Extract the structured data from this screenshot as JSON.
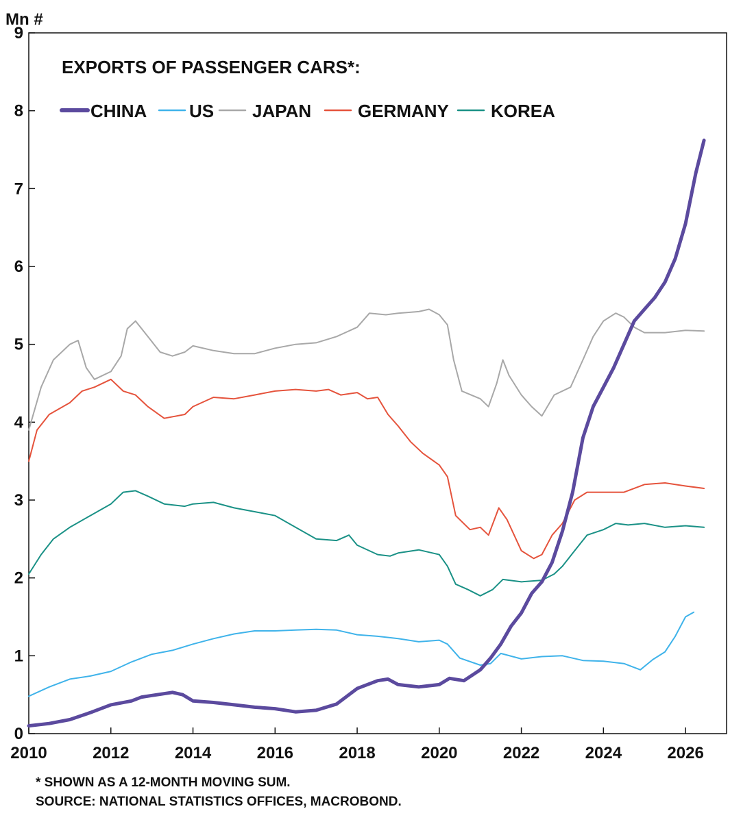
{
  "chart_data": {
    "type": "line",
    "title": "EXPORTS OF PASSENGER CARS*:",
    "ylabel": "Mn #",
    "xlabel": "",
    "ylim": [
      0,
      9
    ],
    "xlim": [
      2010,
      2027
    ],
    "yticks": [
      0,
      1,
      2,
      3,
      4,
      5,
      6,
      7,
      8,
      9
    ],
    "xticks": [
      2010,
      2012,
      2014,
      2016,
      2018,
      2020,
      2022,
      2024,
      2026
    ],
    "grid": false,
    "legend_position": "top",
    "series": [
      {
        "name": "CHINA",
        "color": "#5b4a9e",
        "width": 5,
        "points": [
          [
            2010,
            0.1
          ],
          [
            2010.5,
            0.13
          ],
          [
            2011,
            0.18
          ],
          [
            2011.5,
            0.27
          ],
          [
            2012,
            0.37
          ],
          [
            2012.5,
            0.42
          ],
          [
            2012.75,
            0.47
          ],
          [
            2013,
            0.49
          ],
          [
            2013.5,
            0.53
          ],
          [
            2013.75,
            0.5
          ],
          [
            2014,
            0.42
          ],
          [
            2014.5,
            0.4
          ],
          [
            2015,
            0.37
          ],
          [
            2015.5,
            0.34
          ],
          [
            2016,
            0.32
          ],
          [
            2016.5,
            0.28
          ],
          [
            2017,
            0.3
          ],
          [
            2017.5,
            0.38
          ],
          [
            2018,
            0.58
          ],
          [
            2018.5,
            0.68
          ],
          [
            2018.75,
            0.7
          ],
          [
            2019,
            0.63
          ],
          [
            2019.5,
            0.6
          ],
          [
            2020,
            0.63
          ],
          [
            2020.25,
            0.71
          ],
          [
            2020.6,
            0.68
          ],
          [
            2021,
            0.82
          ],
          [
            2021.25,
            0.97
          ],
          [
            2021.5,
            1.15
          ],
          [
            2021.75,
            1.38
          ],
          [
            2022,
            1.55
          ],
          [
            2022.25,
            1.8
          ],
          [
            2022.5,
            1.95
          ],
          [
            2022.75,
            2.2
          ],
          [
            2023,
            2.6
          ],
          [
            2023.25,
            3.1
          ],
          [
            2023.5,
            3.8
          ],
          [
            2023.75,
            4.2
          ],
          [
            2024,
            4.45
          ],
          [
            2024.25,
            4.7
          ],
          [
            2024.5,
            5.0
          ],
          [
            2024.75,
            5.3
          ],
          [
            2025,
            5.45
          ],
          [
            2025.25,
            5.6
          ],
          [
            2025.5,
            5.8
          ],
          [
            2025.75,
            6.1
          ],
          [
            2026,
            6.55
          ],
          [
            2026.25,
            7.2
          ],
          [
            2026.45,
            7.62
          ]
        ]
      },
      {
        "name": "US",
        "color": "#3fb3ea",
        "width": 2,
        "points": [
          [
            2010,
            0.48
          ],
          [
            2010.5,
            0.6
          ],
          [
            2011,
            0.7
          ],
          [
            2011.5,
            0.74
          ],
          [
            2012,
            0.8
          ],
          [
            2012.5,
            0.92
          ],
          [
            2013,
            1.02
          ],
          [
            2013.5,
            1.07
          ],
          [
            2014,
            1.15
          ],
          [
            2014.5,
            1.22
          ],
          [
            2015,
            1.28
          ],
          [
            2015.5,
            1.32
          ],
          [
            2016,
            1.32
          ],
          [
            2016.5,
            1.33
          ],
          [
            2017,
            1.34
          ],
          [
            2017.5,
            1.33
          ],
          [
            2018,
            1.27
          ],
          [
            2018.5,
            1.25
          ],
          [
            2019,
            1.22
          ],
          [
            2019.5,
            1.18
          ],
          [
            2020,
            1.2
          ],
          [
            2020.2,
            1.15
          ],
          [
            2020.5,
            0.97
          ],
          [
            2021,
            0.88
          ],
          [
            2021.25,
            0.9
          ],
          [
            2021.5,
            1.03
          ],
          [
            2022,
            0.96
          ],
          [
            2022.5,
            0.99
          ],
          [
            2023,
            1.0
          ],
          [
            2023.5,
            0.94
          ],
          [
            2024,
            0.93
          ],
          [
            2024.5,
            0.9
          ],
          [
            2024.9,
            0.82
          ],
          [
            2025.2,
            0.95
          ],
          [
            2025.5,
            1.05
          ],
          [
            2025.75,
            1.25
          ],
          [
            2026,
            1.5
          ],
          [
            2026.2,
            1.56
          ]
        ]
      },
      {
        "name": "JAPAN",
        "color": "#a8a8a8",
        "width": 2,
        "points": [
          [
            2010,
            3.9
          ],
          [
            2010.3,
            4.45
          ],
          [
            2010.6,
            4.8
          ],
          [
            2011,
            5.0
          ],
          [
            2011.2,
            5.05
          ],
          [
            2011.4,
            4.7
          ],
          [
            2011.6,
            4.55
          ],
          [
            2012,
            4.65
          ],
          [
            2012.25,
            4.85
          ],
          [
            2012.4,
            5.2
          ],
          [
            2012.6,
            5.3
          ],
          [
            2012.9,
            5.1
          ],
          [
            2013.2,
            4.9
          ],
          [
            2013.5,
            4.85
          ],
          [
            2013.8,
            4.9
          ],
          [
            2014,
            4.98
          ],
          [
            2014.5,
            4.92
          ],
          [
            2015,
            4.88
          ],
          [
            2015.5,
            4.88
          ],
          [
            2016,
            4.95
          ],
          [
            2016.5,
            5.0
          ],
          [
            2017,
            5.02
          ],
          [
            2017.5,
            5.1
          ],
          [
            2018,
            5.22
          ],
          [
            2018.3,
            5.4
          ],
          [
            2018.7,
            5.38
          ],
          [
            2019,
            5.4
          ],
          [
            2019.5,
            5.42
          ],
          [
            2019.75,
            5.45
          ],
          [
            2020,
            5.38
          ],
          [
            2020.2,
            5.25
          ],
          [
            2020.35,
            4.8
          ],
          [
            2020.55,
            4.4
          ],
          [
            2021,
            4.3
          ],
          [
            2021.2,
            4.2
          ],
          [
            2021.4,
            4.5
          ],
          [
            2021.55,
            4.8
          ],
          [
            2021.7,
            4.6
          ],
          [
            2022,
            4.35
          ],
          [
            2022.25,
            4.2
          ],
          [
            2022.5,
            4.08
          ],
          [
            2022.8,
            4.35
          ],
          [
            2023.2,
            4.45
          ],
          [
            2023.5,
            4.8
          ],
          [
            2023.75,
            5.1
          ],
          [
            2024,
            5.3
          ],
          [
            2024.3,
            5.4
          ],
          [
            2024.5,
            5.35
          ],
          [
            2024.75,
            5.22
          ],
          [
            2025,
            5.15
          ],
          [
            2025.5,
            5.15
          ],
          [
            2026,
            5.18
          ],
          [
            2026.45,
            5.17
          ]
        ]
      },
      {
        "name": "GERMANY",
        "color": "#e5533c",
        "width": 2,
        "points": [
          [
            2010,
            3.5
          ],
          [
            2010.2,
            3.9
          ],
          [
            2010.5,
            4.1
          ],
          [
            2011,
            4.25
          ],
          [
            2011.3,
            4.4
          ],
          [
            2011.6,
            4.45
          ],
          [
            2012,
            4.55
          ],
          [
            2012.3,
            4.4
          ],
          [
            2012.6,
            4.35
          ],
          [
            2012.9,
            4.2
          ],
          [
            2013.3,
            4.05
          ],
          [
            2013.8,
            4.1
          ],
          [
            2014,
            4.2
          ],
          [
            2014.5,
            4.32
          ],
          [
            2015,
            4.3
          ],
          [
            2015.5,
            4.35
          ],
          [
            2016,
            4.4
          ],
          [
            2016.5,
            4.42
          ],
          [
            2017,
            4.4
          ],
          [
            2017.3,
            4.42
          ],
          [
            2017.6,
            4.35
          ],
          [
            2018,
            4.38
          ],
          [
            2018.25,
            4.3
          ],
          [
            2018.5,
            4.32
          ],
          [
            2018.75,
            4.1
          ],
          [
            2019,
            3.95
          ],
          [
            2019.3,
            3.75
          ],
          [
            2019.6,
            3.6
          ],
          [
            2020,
            3.45
          ],
          [
            2020.2,
            3.3
          ],
          [
            2020.4,
            2.8
          ],
          [
            2020.75,
            2.62
          ],
          [
            2021,
            2.65
          ],
          [
            2021.2,
            2.55
          ],
          [
            2021.45,
            2.9
          ],
          [
            2021.65,
            2.75
          ],
          [
            2022,
            2.35
          ],
          [
            2022.3,
            2.25
          ],
          [
            2022.5,
            2.3
          ],
          [
            2022.75,
            2.55
          ],
          [
            2023,
            2.7
          ],
          [
            2023.3,
            3.0
          ],
          [
            2023.6,
            3.1
          ],
          [
            2024,
            3.1
          ],
          [
            2024.5,
            3.1
          ],
          [
            2025,
            3.2
          ],
          [
            2025.5,
            3.22
          ],
          [
            2026,
            3.18
          ],
          [
            2026.45,
            3.15
          ]
        ]
      },
      {
        "name": "KOREA",
        "color": "#1a9186",
        "width": 2,
        "points": [
          [
            2010,
            2.05
          ],
          [
            2010.3,
            2.3
          ],
          [
            2010.6,
            2.5
          ],
          [
            2011,
            2.65
          ],
          [
            2011.5,
            2.8
          ],
          [
            2012,
            2.95
          ],
          [
            2012.3,
            3.1
          ],
          [
            2012.6,
            3.12
          ],
          [
            2012.9,
            3.05
          ],
          [
            2013.3,
            2.95
          ],
          [
            2013.8,
            2.92
          ],
          [
            2014,
            2.95
          ],
          [
            2014.5,
            2.97
          ],
          [
            2015,
            2.9
          ],
          [
            2015.5,
            2.85
          ],
          [
            2016,
            2.8
          ],
          [
            2016.5,
            2.65
          ],
          [
            2017,
            2.5
          ],
          [
            2017.5,
            2.48
          ],
          [
            2017.8,
            2.55
          ],
          [
            2018,
            2.42
          ],
          [
            2018.5,
            2.3
          ],
          [
            2018.8,
            2.28
          ],
          [
            2019,
            2.32
          ],
          [
            2019.5,
            2.36
          ],
          [
            2020,
            2.3
          ],
          [
            2020.2,
            2.15
          ],
          [
            2020.4,
            1.92
          ],
          [
            2020.7,
            1.85
          ],
          [
            2021,
            1.77
          ],
          [
            2021.3,
            1.85
          ],
          [
            2021.55,
            1.98
          ],
          [
            2022,
            1.95
          ],
          [
            2022.5,
            1.97
          ],
          [
            2022.8,
            2.05
          ],
          [
            2023,
            2.15
          ],
          [
            2023.3,
            2.35
          ],
          [
            2023.6,
            2.55
          ],
          [
            2024,
            2.62
          ],
          [
            2024.3,
            2.7
          ],
          [
            2024.6,
            2.68
          ],
          [
            2025,
            2.7
          ],
          [
            2025.5,
            2.65
          ],
          [
            2026,
            2.67
          ],
          [
            2026.45,
            2.65
          ]
        ]
      }
    ]
  },
  "footnotes": {
    "note": "* SHOWN AS A 12-MONTH MOVING SUM.",
    "source": "SOURCE: NATIONAL STATISTICS OFFICES, MACROBOND."
  }
}
